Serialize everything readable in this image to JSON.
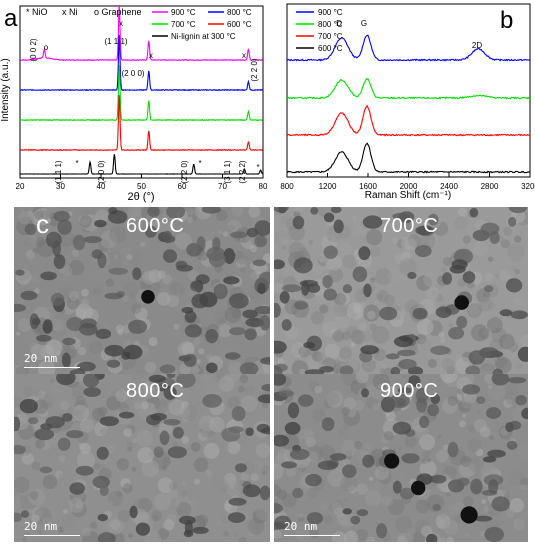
{
  "chart_data": [
    {
      "panel": "a",
      "type": "line",
      "xlabel": "2θ (°)",
      "ylabel": "Intensity (a.u.)",
      "xlim": [
        20,
        80
      ],
      "xticks": [
        "20",
        "30",
        "40",
        "50",
        "60",
        "70",
        "80"
      ],
      "legend_position": "top",
      "legend": {
        "markers": [
          {
            "symbol": "*",
            "label": "NiO"
          },
          {
            "symbol": "x",
            "label": "Ni"
          },
          {
            "symbol": "o",
            "label": "Graphene"
          }
        ]
      },
      "series": [
        {
          "name": "900 °C",
          "color": "#ff00ff",
          "peaks": [
            [
              26,
              0.15
            ],
            [
              44.5,
              1.0
            ],
            [
              51.8,
              0.35
            ],
            [
              76.4,
              0.2
            ]
          ]
        },
        {
          "name": "800 °C",
          "color": "#0000ff",
          "peaks": [
            [
              44.5,
              1.0
            ],
            [
              51.8,
              0.35
            ],
            [
              76.4,
              0.15
            ]
          ]
        },
        {
          "name": "700 °C",
          "color": "#00dd00",
          "peaks": [
            [
              44.5,
              1.0
            ],
            [
              51.8,
              0.35
            ],
            [
              76.4,
              0.15
            ]
          ]
        },
        {
          "name": "600 °C",
          "color": "#ff0000",
          "peaks": [
            [
              44.5,
              1.0
            ],
            [
              51.8,
              0.35
            ],
            [
              76.4,
              0.15
            ]
          ]
        },
        {
          "name": "Ni-lignin at 300 °C",
          "color": "#000000",
          "peaks": [
            [
              37.3,
              0.6
            ],
            [
              43.3,
              1.0
            ],
            [
              62.9,
              0.5
            ],
            [
              75.4,
              0.25
            ],
            [
              79.4,
              0.2
            ]
          ]
        }
      ],
      "annotations": [
        "(0 0 2)",
        "o",
        "(1 1 1)",
        "x",
        "(2 0 0)",
        "x",
        "x",
        "(2 2 0)",
        "(1 1 1)",
        "*",
        "(2 0 0)",
        "(2 2 0)",
        "*",
        "(3 1 1)",
        "(2 2 2)",
        "*"
      ]
    },
    {
      "panel": "b",
      "type": "line",
      "xlabel": "Raman Shift (cm⁻¹)",
      "ylabel": "Intensity (a.u.)",
      "xlim": [
        800,
        3200
      ],
      "xticks": [
        "800",
        "1200",
        "1600",
        "2000",
        "2400",
        "2800",
        "3200"
      ],
      "legend_position": "top-left",
      "series": [
        {
          "name": "900 °C",
          "color": "#0000ff"
        },
        {
          "name": "800 °C",
          "color": "#00dd00"
        },
        {
          "name": "700 °C",
          "color": "#ff0000"
        },
        {
          "name": "600 °C",
          "color": "#000000"
        }
      ],
      "bands": [
        {
          "label": "D",
          "x": 1340
        },
        {
          "label": "G",
          "x": 1590
        },
        {
          "label": "2D",
          "x": 2690
        }
      ]
    }
  ],
  "panel_c": {
    "letter": "c",
    "images": [
      {
        "label": "600°C",
        "scale_bar": "20 nm"
      },
      {
        "label": "700°C",
        "scale_bar": ""
      },
      {
        "label": "800°C",
        "scale_bar": "20 nm"
      },
      {
        "label": "900°C",
        "scale_bar": "20 nm"
      }
    ]
  },
  "letters": {
    "a": "a",
    "b": "b"
  }
}
